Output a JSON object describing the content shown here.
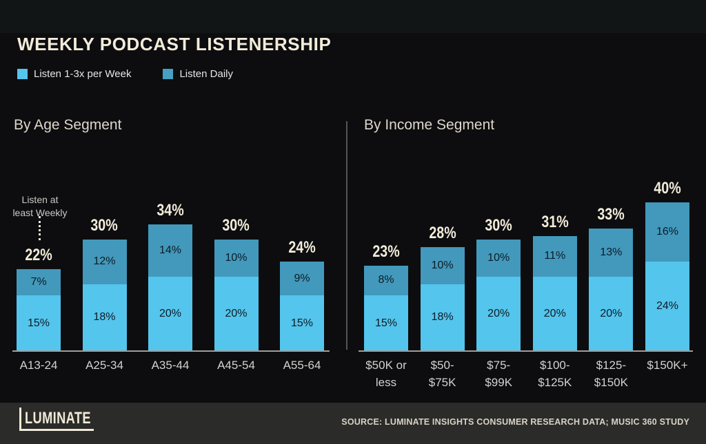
{
  "page": {
    "title": "WEEKLY PODCAST LISTENERSHIP",
    "brand": "LUMINATE",
    "source_text": "SOURCE:  LUMINATE INSIGHTS CONSUMER RESEARCH DATA; MUSIC 360 STUDY"
  },
  "legend": [
    {
      "label": "Listen 1-3x per Week",
      "color": "#54c5ec"
    },
    {
      "label": "Listen Daily",
      "color": "#45a0c2"
    }
  ],
  "annotation": {
    "lines": [
      "Listen at",
      "least Weekly"
    ]
  },
  "colors": {
    "background": "#0d0d10",
    "footer_background": "#2b2b29",
    "weekly_bar": "#54c5ec",
    "daily_bar": "#4299bc",
    "accent_cream": "#f2ecd9"
  },
  "chart_data": [
    {
      "type": "bar",
      "stacked": true,
      "title": "By Age Segment",
      "unit": "%",
      "categories": [
        [
          "A13-24"
        ],
        [
          "A25-34"
        ],
        [
          "A35-44"
        ],
        [
          "A45-54"
        ],
        [
          "A55-64"
        ]
      ],
      "series": [
        {
          "name": "Listen 1-3x per Week",
          "values": [
            15,
            18,
            20,
            20,
            15
          ]
        },
        {
          "name": "Listen Daily",
          "values": [
            7,
            12,
            14,
            10,
            9
          ]
        }
      ],
      "totals": [
        22,
        30,
        34,
        30,
        24
      ],
      "ylim": [
        0,
        45
      ],
      "grid": false,
      "legend_position": "top-left"
    },
    {
      "type": "bar",
      "stacked": true,
      "title": "By Income Segment",
      "unit": "%",
      "categories": [
        [
          "$50K or",
          "less"
        ],
        [
          "$50-",
          "$75K"
        ],
        [
          "$75-",
          "$99K"
        ],
        [
          "$100-",
          "$125K"
        ],
        [
          "$125-",
          "$150K"
        ],
        [
          "$150K+"
        ]
      ],
      "series": [
        {
          "name": "Listen 1-3x per Week",
          "values": [
            15,
            18,
            20,
            20,
            20,
            24
          ]
        },
        {
          "name": "Listen Daily",
          "values": [
            8,
            10,
            10,
            11,
            13,
            16
          ]
        }
      ],
      "totals": [
        23,
        28,
        30,
        31,
        33,
        40
      ],
      "ylim": [
        0,
        45
      ],
      "grid": false,
      "legend_position": "top-left"
    }
  ]
}
